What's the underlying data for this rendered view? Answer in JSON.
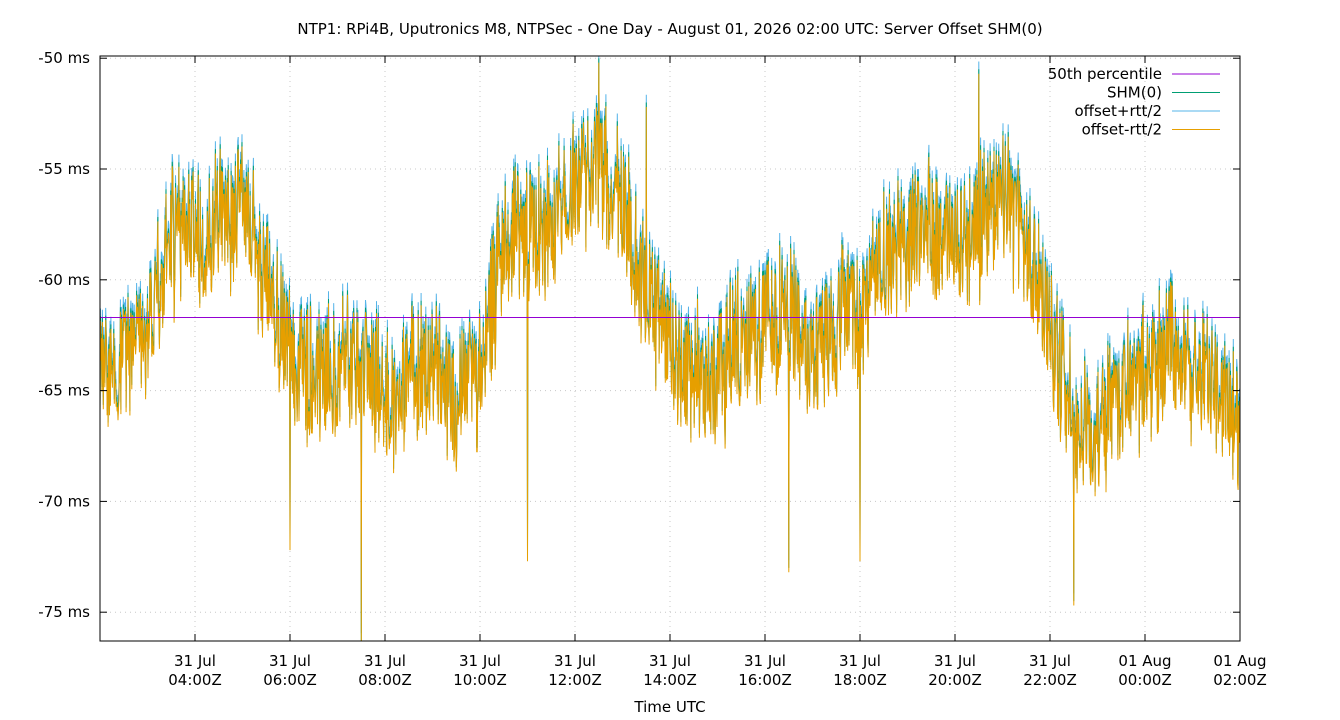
{
  "chart_data": {
    "type": "line",
    "title": "NTP1: RPi4B, Uputronics M8, NTPSec - One Day - August 01, 2026 02:00 UTC: Server Offset SHM(0)",
    "xlabel": "Time UTC",
    "ylabel": "",
    "x_ticks": [
      {
        "date": "31 Jul",
        "time": "04:00Z",
        "hours": -22
      },
      {
        "date": "31 Jul",
        "time": "06:00Z",
        "hours": -20
      },
      {
        "date": "31 Jul",
        "time": "08:00Z",
        "hours": -18
      },
      {
        "date": "31 Jul",
        "time": "10:00Z",
        "hours": -16
      },
      {
        "date": "31 Jul",
        "time": "12:00Z",
        "hours": -14
      },
      {
        "date": "31 Jul",
        "time": "14:00Z",
        "hours": -12
      },
      {
        "date": "31 Jul",
        "time": "16:00Z",
        "hours": -10
      },
      {
        "date": "31 Jul",
        "time": "18:00Z",
        "hours": -8
      },
      {
        "date": "31 Jul",
        "time": "20:00Z",
        "hours": -6
      },
      {
        "date": "31 Jul",
        "time": "22:00Z",
        "hours": -4
      },
      {
        "date": "01 Aug",
        "time": "00:00Z",
        "hours": -2
      },
      {
        "date": "01 Aug",
        "time": "02:00Z",
        "hours": 0
      }
    ],
    "y_ticks": [
      {
        "label": "-50 ms",
        "value": -50
      },
      {
        "label": "-55 ms",
        "value": -55
      },
      {
        "label": "-60 ms",
        "value": -60
      },
      {
        "label": "-65 ms",
        "value": -65
      },
      {
        "label": "-70 ms",
        "value": -70
      },
      {
        "label": "-75 ms",
        "value": -75
      }
    ],
    "xlim_hours": [
      -24,
      0
    ],
    "ylim": [
      -76.3,
      -49.9
    ],
    "grid": true,
    "legend_position": "top-right",
    "percentile_50": -61.7,
    "series": [
      {
        "name": "50th percentile",
        "color": "#9400d3"
      },
      {
        "name": "SHM(0)",
        "color": "#009e73"
      },
      {
        "name": "offset+rtt/2",
        "color": "#56b4e9"
      },
      {
        "name": "offset-rtt/2",
        "color": "#e69f00"
      }
    ],
    "offset_trend": [
      {
        "x": -24.0,
        "y": -64.5
      },
      {
        "x": -23.5,
        "y": -63.5
      },
      {
        "x": -23.0,
        "y": -61.5
      },
      {
        "x": -22.5,
        "y": -58.0
      },
      {
        "x": -22.0,
        "y": -58.0
      },
      {
        "x": -21.5,
        "y": -57.0
      },
      {
        "x": -21.0,
        "y": -57.0
      },
      {
        "x": -20.5,
        "y": -60.0
      },
      {
        "x": -20.0,
        "y": -63.0
      },
      {
        "x": -19.5,
        "y": -64.5
      },
      {
        "x": -19.0,
        "y": -64.0
      },
      {
        "x": -18.5,
        "y": -63.5
      },
      {
        "x": -18.0,
        "y": -65.0
      },
      {
        "x": -17.5,
        "y": -64.5
      },
      {
        "x": -17.0,
        "y": -63.5
      },
      {
        "x": -16.5,
        "y": -65.5
      },
      {
        "x": -16.0,
        "y": -64.0
      },
      {
        "x": -15.5,
        "y": -58.5
      },
      {
        "x": -15.0,
        "y": -57.0
      },
      {
        "x": -14.5,
        "y": -58.0
      },
      {
        "x": -14.0,
        "y": -55.5
      },
      {
        "x": -13.5,
        "y": -54.5
      },
      {
        "x": -13.0,
        "y": -56.5
      },
      {
        "x": -12.5,
        "y": -60.5
      },
      {
        "x": -12.0,
        "y": -62.5
      },
      {
        "x": -11.5,
        "y": -64.0
      },
      {
        "x": -11.0,
        "y": -64.5
      },
      {
        "x": -10.5,
        "y": -62.5
      },
      {
        "x": -10.0,
        "y": -62.0
      },
      {
        "x": -9.5,
        "y": -61.5
      },
      {
        "x": -9.0,
        "y": -63.0
      },
      {
        "x": -8.5,
        "y": -62.0
      },
      {
        "x": -8.0,
        "y": -61.5
      },
      {
        "x": -7.5,
        "y": -59.0
      },
      {
        "x": -7.0,
        "y": -58.0
      },
      {
        "x": -6.5,
        "y": -57.5
      },
      {
        "x": -6.0,
        "y": -58.5
      },
      {
        "x": -5.5,
        "y": -57.5
      },
      {
        "x": -5.0,
        "y": -56.0
      },
      {
        "x": -4.5,
        "y": -58.5
      },
      {
        "x": -4.0,
        "y": -62.0
      },
      {
        "x": -3.5,
        "y": -66.5
      },
      {
        "x": -3.0,
        "y": -67.0
      },
      {
        "x": -2.5,
        "y": -65.0
      },
      {
        "x": -2.0,
        "y": -64.5
      },
      {
        "x": -1.5,
        "y": -63.0
      },
      {
        "x": -1.0,
        "y": -64.5
      },
      {
        "x": -0.5,
        "y": -64.5
      },
      {
        "x": 0.0,
        "y": -66.5
      }
    ],
    "noise_amplitude_ms": 2.7,
    "spikes": [
      {
        "x": -20.0,
        "y": -72.0
      },
      {
        "x": -18.5,
        "y": -76.3
      },
      {
        "x": -15.0,
        "y": -72.5
      },
      {
        "x": -13.5,
        "y": -50.0
      },
      {
        "x": -12.5,
        "y": -52.0
      },
      {
        "x": -9.5,
        "y": -73.0
      },
      {
        "x": -8.0,
        "y": -72.5
      },
      {
        "x": -5.5,
        "y": -50.5
      },
      {
        "x": -3.5,
        "y": -74.5
      }
    ]
  }
}
